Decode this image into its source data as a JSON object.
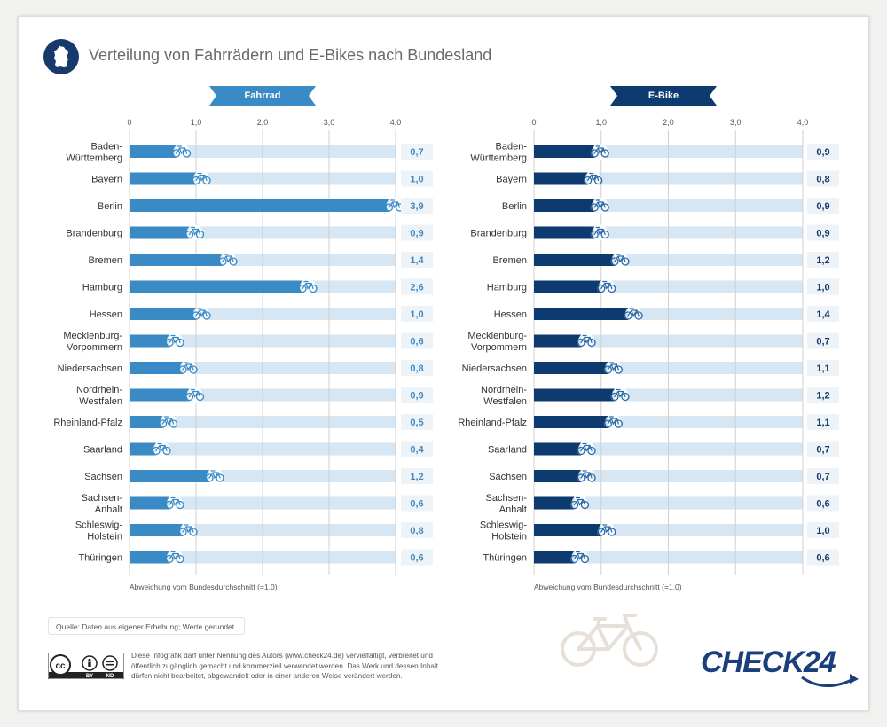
{
  "title": "Verteilung von Fahrrädern und E-Bikes nach Bundesland",
  "header_icon": "germany-map-icon",
  "colors": {
    "fahrrad_bar": "#3a8ac6",
    "ebike_bar": "#0d3b70",
    "track": "#d6e6f3",
    "value_box": "#eef3f8",
    "fahrrad_value_text": "#3a8ac6",
    "ebike_value_text": "#173a6c",
    "grid": "#d0d0d0"
  },
  "chart_data": [
    {
      "type": "bar",
      "orientation": "horizontal",
      "title": "Fahrrad",
      "categories": [
        "Baden-Württemberg",
        "Bayern",
        "Berlin",
        "Brandenburg",
        "Bremen",
        "Hamburg",
        "Hessen",
        "Mecklenburg-Vorpommern",
        "Niedersachsen",
        "Nordrhein-Westfalen",
        "Rheinland-Pfalz",
        "Saarland",
        "Sachsen",
        "Sachsen-Anhalt",
        "Schleswig-Holstein",
        "Thüringen"
      ],
      "category_lines": [
        [
          "Baden-",
          "Württemberg"
        ],
        [
          "Bayern"
        ],
        [
          "Berlin"
        ],
        [
          "Brandenburg"
        ],
        [
          "Bremen"
        ],
        [
          "Hamburg"
        ],
        [
          "Hessen"
        ],
        [
          "Mecklenburg-",
          "Vorpommern"
        ],
        [
          "Niedersachsen"
        ],
        [
          "Nordrhein-",
          "Westfalen"
        ],
        [
          "Rheinland-Pfalz"
        ],
        [
          "Saarland"
        ],
        [
          "Sachsen"
        ],
        [
          "Sachsen-",
          "Anhalt"
        ],
        [
          "Schleswig-",
          "Holstein"
        ],
        [
          "Thüringen"
        ]
      ],
      "values": [
        0.7,
        1.0,
        3.9,
        0.9,
        1.4,
        2.6,
        1.0,
        0.6,
        0.8,
        0.9,
        0.5,
        0.4,
        1.2,
        0.6,
        0.8,
        0.6
      ],
      "value_labels": [
        "0,7",
        "1,0",
        "3,9",
        "0,9",
        "1,4",
        "2,6",
        "1,0",
        "0,6",
        "0,8",
        "0,9",
        "0,5",
        "0,4",
        "1,2",
        "0,6",
        "0,8",
        "0,6"
      ],
      "xlim": [
        0,
        4.0
      ],
      "xticks": [
        "0",
        "1,0",
        "2,0",
        "3,0",
        "4,0"
      ],
      "xlabel": "Abweichung vom Bundesdurchschnitt (=1,0)",
      "marker_icon": "bicycle-icon",
      "grid": true
    },
    {
      "type": "bar",
      "orientation": "horizontal",
      "title": "E-Bike",
      "categories": [
        "Baden-Württemberg",
        "Bayern",
        "Berlin",
        "Brandenburg",
        "Bremen",
        "Hamburg",
        "Hessen",
        "Mecklenburg-Vorpommern",
        "Niedersachsen",
        "Nordrhein-Westfalen",
        "Rheinland-Pfalz",
        "Saarland",
        "Sachsen",
        "Sachsen-Anhalt",
        "Schleswig-Holstein",
        "Thüringen"
      ],
      "category_lines": [
        [
          "Baden-",
          "Württemberg"
        ],
        [
          "Bayern"
        ],
        [
          "Berlin"
        ],
        [
          "Brandenburg"
        ],
        [
          "Bremen"
        ],
        [
          "Hamburg"
        ],
        [
          "Hessen"
        ],
        [
          "Mecklenburg-",
          "Vorpommern"
        ],
        [
          "Niedersachsen"
        ],
        [
          "Nordrhein-",
          "Westfalen"
        ],
        [
          "Rheinland-Pfalz"
        ],
        [
          "Saarland"
        ],
        [
          "Sachsen"
        ],
        [
          "Sachsen-",
          "Anhalt"
        ],
        [
          "Schleswig-",
          "Holstein"
        ],
        [
          "Thüringen"
        ]
      ],
      "values": [
        0.9,
        0.8,
        0.9,
        0.9,
        1.2,
        1.0,
        1.4,
        0.7,
        1.1,
        1.2,
        1.1,
        0.7,
        0.7,
        0.6,
        1.0,
        0.6
      ],
      "value_labels": [
        "0,9",
        "0,8",
        "0,9",
        "0,9",
        "1,2",
        "1,0",
        "1,4",
        "0,7",
        "1,1",
        "1,2",
        "1,1",
        "0,7",
        "0,7",
        "0,6",
        "1,0",
        "0,6"
      ],
      "xlim": [
        0,
        4.0
      ],
      "xticks": [
        "0",
        "1,0",
        "2,0",
        "3,0",
        "4,0"
      ],
      "xlabel": "Abweichung vom Bundesdurchschnitt (=1,0)",
      "marker_icon": "bicycle-icon",
      "grid": true
    }
  ],
  "source": "Quelle: Daten aus eigener Erhebung; Werte gerundet.",
  "license": {
    "badge_labels": [
      "cc",
      "BY",
      "ND"
    ],
    "text": "Diese Infografik darf unter Nennung des Autors (www.check24.de) vervielfältigt, verbreitet und öffentlich zugänglich gemacht und kommerziell verwendet werden. Das Werk und dessen Inhalt dürfen nicht bearbeitet, abgewandelt oder in einer anderen Weise verändert werden."
  },
  "logo": "CHECK24",
  "illustration_icon": "bicycle-illustration-icon"
}
